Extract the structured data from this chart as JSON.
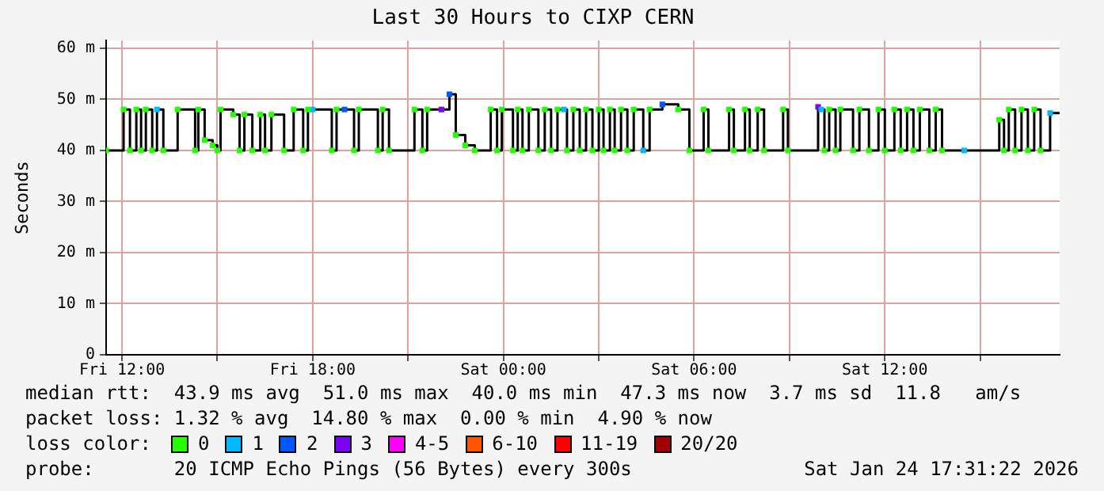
{
  "chart_data": {
    "type": "step",
    "title": "Last 30 Hours to CIXP CERN",
    "ylabel": "Seconds",
    "xlim": [
      "2026-01-23T11:30",
      "2026-01-24T17:30"
    ],
    "xticks": [
      {
        "value": "2026-01-23T12:00",
        "label": "Fri 12:00"
      },
      {
        "value": "2026-01-23T15:00",
        "label": null
      },
      {
        "value": "2026-01-23T18:00",
        "label": "Fri 18:00"
      },
      {
        "value": "2026-01-23T21:00",
        "label": null
      },
      {
        "value": "2026-01-24T00:00",
        "label": "Sat 00:00"
      },
      {
        "value": "2026-01-24T03:00",
        "label": null
      },
      {
        "value": "2026-01-24T06:00",
        "label": "Sat 06:00"
      },
      {
        "value": "2026-01-24T09:00",
        "label": null
      },
      {
        "value": "2026-01-24T12:00",
        "label": "Sat 12:00"
      },
      {
        "value": "2026-01-24T15:00",
        "label": null
      }
    ],
    "ylim": [
      0,
      61.5
    ],
    "yticks": [
      0,
      {
        "value": 10,
        "label": "10 m"
      },
      {
        "value": 20,
        "label": "20 m"
      },
      {
        "value": 30,
        "label": "30 m"
      },
      {
        "value": 40,
        "label": "40 m"
      },
      {
        "value": 50,
        "label": "50 m"
      },
      {
        "value": 60,
        "label": "60 m"
      }
    ],
    "grid": true,
    "legend": "bottom",
    "legend_title": "loss color:",
    "marker": "square",
    "line_style": "solid",
    "series": [
      {
        "color": "#000000",
        "marker": "none",
        "x": [
          "2026-01-23T11:30",
          "2026-01-23T12:03",
          "2026-01-23T12:15",
          "2026-01-23T12:27",
          "2026-01-23T12:36",
          "2026-01-23T12:45",
          "2026-01-23T12:57",
          "2026-01-23T13:06",
          "2026-01-23T13:18",
          "2026-01-23T13:45",
          "2026-01-23T14:18",
          "2026-01-23T14:24",
          "2026-01-23T14:36",
          "2026-01-23T14:51",
          "2026-01-23T15:00",
          "2026-01-23T15:06",
          "2026-01-23T15:30",
          "2026-01-23T15:42",
          "2026-01-23T15:51",
          "2026-01-23T16:06",
          "2026-01-23T16:21",
          "2026-01-23T16:30",
          "2026-01-23T16:42",
          "2026-01-23T17:06",
          "2026-01-23T17:24",
          "2026-01-23T17:42",
          "2026-01-23T17:51",
          "2026-01-23T18:36",
          "2026-01-23T18:45",
          "2026-01-23T19:18",
          "2026-01-23T19:27",
          "2026-01-23T20:03",
          "2026-01-23T20:12",
          "2026-01-23T20:24",
          "2026-01-23T21:12",
          "2026-01-23T21:27",
          "2026-01-23T21:36",
          "2026-01-23T22:18",
          "2026-01-23T22:30",
          "2026-01-23T22:48",
          "2026-01-23T23:06",
          "2026-01-23T23:36",
          "2026-01-23T23:48",
          "2026-01-23T23:57",
          "2026-01-24T00:18",
          "2026-01-24T00:27",
          "2026-01-24T00:36",
          "2026-01-24T00:48",
          "2026-01-24T01:06",
          "2026-01-24T01:18",
          "2026-01-24T01:30",
          "2026-01-24T01:42",
          "2026-01-24T02:00",
          "2026-01-24T02:12",
          "2026-01-24T02:24",
          "2026-01-24T02:36",
          "2026-01-24T02:48",
          "2026-01-24T03:00",
          "2026-01-24T03:09",
          "2026-01-24T03:21",
          "2026-01-24T03:30",
          "2026-01-24T03:42",
          "2026-01-24T03:54",
          "2026-01-24T04:06",
          "2026-01-24T04:24",
          "2026-01-24T04:36",
          "2026-01-24T05:00",
          "2026-01-24T05:30",
          "2026-01-24T05:51",
          "2026-01-24T06:18",
          "2026-01-24T06:27",
          "2026-01-24T07:06",
          "2026-01-24T07:15",
          "2026-01-24T07:36",
          "2026-01-24T07:45",
          "2026-01-24T08:00",
          "2026-01-24T08:12",
          "2026-01-24T08:48",
          "2026-01-24T08:57",
          "2026-01-24T09:54",
          "2026-01-24T10:06",
          "2026-01-24T10:15",
          "2026-01-24T10:27",
          "2026-01-24T10:36",
          "2026-01-24T11:00",
          "2026-01-24T11:12",
          "2026-01-24T11:30",
          "2026-01-24T11:48",
          "2026-01-24T12:00",
          "2026-01-24T12:18",
          "2026-01-24T12:30",
          "2026-01-24T12:42",
          "2026-01-24T12:54",
          "2026-01-24T13:06",
          "2026-01-24T13:24",
          "2026-01-24T13:36",
          "2026-01-24T13:48",
          "2026-01-24T15:36",
          "2026-01-24T15:45",
          "2026-01-24T15:54",
          "2026-01-24T16:06",
          "2026-01-24T16:18",
          "2026-01-24T16:30",
          "2026-01-24T16:42",
          "2026-01-24T16:54",
          "2026-01-24T17:12",
          "2026-01-24T17:30"
        ],
        "values": [
          40,
          48,
          40,
          48,
          40,
          48,
          40,
          48,
          40,
          48,
          40,
          48,
          42,
          41,
          40,
          48,
          47,
          40,
          47,
          40,
          47,
          40,
          47,
          40,
          48,
          40,
          48,
          40,
          48,
          40,
          48,
          40,
          48,
          40,
          48,
          40,
          48,
          51,
          43,
          41,
          40,
          48,
          40,
          48,
          40,
          48,
          40,
          48,
          40,
          48,
          40,
          48,
          40,
          48,
          40,
          48,
          40,
          48,
          40,
          48,
          40,
          48,
          40,
          48,
          40,
          48,
          49,
          48,
          40,
          48,
          40,
          48,
          40,
          48,
          40,
          48,
          40,
          48,
          40,
          48,
          40,
          48,
          40,
          48,
          40,
          48,
          40,
          48,
          40,
          48,
          40,
          48,
          40,
          48,
          40,
          48,
          40,
          46,
          40,
          48,
          40,
          48,
          40,
          48,
          40,
          47.3,
          47.3
        ]
      },
      {
        "type": "scatter",
        "name": "0",
        "color": "#26ff00",
        "x": [
          "2026-01-23T11:30",
          "2026-01-23T12:03",
          "2026-01-23T12:15",
          "2026-01-23T12:27",
          "2026-01-23T12:36",
          "2026-01-23T12:45",
          "2026-01-23T12:57",
          "2026-01-23T13:18",
          "2026-01-23T13:45",
          "2026-01-23T14:18",
          "2026-01-23T14:24",
          "2026-01-23T14:36",
          "2026-01-23T14:51",
          "2026-01-23T15:00",
          "2026-01-23T15:06",
          "2026-01-23T15:30",
          "2026-01-23T15:42",
          "2026-01-23T15:51",
          "2026-01-23T16:06",
          "2026-01-23T16:21",
          "2026-01-23T16:30",
          "2026-01-23T16:42",
          "2026-01-23T17:06",
          "2026-01-23T17:24",
          "2026-01-23T17:42",
          "2026-01-23T17:51",
          "2026-01-23T18:36",
          "2026-01-23T18:45",
          "2026-01-23T19:18",
          "2026-01-23T19:27",
          "2026-01-23T20:03",
          "2026-01-23T20:12",
          "2026-01-23T20:24",
          "2026-01-23T21:12",
          "2026-01-23T21:27",
          "2026-01-23T21:36",
          "2026-01-23T22:30",
          "2026-01-23T22:48",
          "2026-01-23T23:06",
          "2026-01-23T23:36",
          "2026-01-23T23:48",
          "2026-01-23T23:57",
          "2026-01-24T00:18",
          "2026-01-24T00:27",
          "2026-01-24T00:36",
          "2026-01-24T00:48",
          "2026-01-24T01:06",
          "2026-01-24T01:18",
          "2026-01-24T01:30",
          "2026-01-24T01:42",
          "2026-01-24T02:00",
          "2026-01-24T02:12",
          "2026-01-24T02:24",
          "2026-01-24T02:36",
          "2026-01-24T02:48",
          "2026-01-24T03:00",
          "2026-01-24T03:09",
          "2026-01-24T03:21",
          "2026-01-24T03:30",
          "2026-01-24T03:42",
          "2026-01-24T03:54",
          "2026-01-24T04:06",
          "2026-01-24T04:36",
          "2026-01-24T05:30",
          "2026-01-24T05:51",
          "2026-01-24T06:18",
          "2026-01-24T06:27",
          "2026-01-24T07:06",
          "2026-01-24T07:15",
          "2026-01-24T07:36",
          "2026-01-24T07:45",
          "2026-01-24T08:00",
          "2026-01-24T08:12",
          "2026-01-24T08:48",
          "2026-01-24T08:57",
          "2026-01-24T10:06",
          "2026-01-24T10:15",
          "2026-01-24T10:27",
          "2026-01-24T10:36",
          "2026-01-24T11:00",
          "2026-01-24T11:12",
          "2026-01-24T11:30",
          "2026-01-24T11:48",
          "2026-01-24T12:00",
          "2026-01-24T12:18",
          "2026-01-24T12:30",
          "2026-01-24T12:42",
          "2026-01-24T12:54",
          "2026-01-24T13:06",
          "2026-01-24T13:24",
          "2026-01-24T13:36",
          "2026-01-24T13:48",
          "2026-01-24T15:36",
          "2026-01-24T15:45",
          "2026-01-24T15:54",
          "2026-01-24T16:06",
          "2026-01-24T16:18",
          "2026-01-24T16:30",
          "2026-01-24T16:42",
          "2026-01-24T16:54"
        ],
        "values": [
          40,
          48,
          40,
          48,
          40,
          48,
          40,
          40,
          48,
          40,
          48,
          42,
          41,
          40,
          48,
          47,
          40,
          47,
          40,
          47,
          40,
          47,
          40,
          48,
          40,
          48,
          40,
          48,
          40,
          48,
          40,
          48,
          40,
          48,
          40,
          48,
          43,
          41,
          40,
          48,
          40,
          48,
          40,
          48,
          40,
          48,
          40,
          48,
          40,
          48,
          40,
          48,
          40,
          48,
          40,
          48,
          40,
          48,
          40,
          48,
          40,
          48,
          48,
          48,
          40,
          48,
          40,
          48,
          40,
          48,
          40,
          48,
          40,
          48,
          40,
          40,
          48,
          40,
          48,
          40,
          48,
          40,
          48,
          40,
          48,
          40,
          48,
          40,
          48,
          40,
          48,
          40,
          46,
          40,
          48,
          40,
          48,
          40,
          48,
          40
        ]
      },
      {
        "type": "scatter",
        "name": "1",
        "color": "#00b8ff",
        "x": [
          "2026-01-23T13:06",
          "2026-01-23T18:00",
          "2026-01-24T01:54",
          "2026-01-24T04:24",
          "2026-01-24T10:00",
          "2026-01-24T14:30",
          "2026-01-24T17:12"
        ],
        "values": [
          48,
          48,
          48,
          40,
          48,
          40,
          47.3
        ]
      },
      {
        "type": "scatter",
        "name": "2",
        "color": "#0059ff",
        "x": [
          "2026-01-23T19:00",
          "2026-01-23T22:18",
          "2026-01-24T05:00"
        ],
        "values": [
          48,
          51,
          49
        ]
      },
      {
        "type": "scatter",
        "name": "3",
        "color": "#7e00ff",
        "x": [
          "2026-01-23T22:03",
          "2026-01-24T09:54"
        ],
        "values": [
          48,
          48.5
        ]
      },
      {
        "type": "scatter",
        "name": "4-5",
        "color": "#ff00ff"
      },
      {
        "type": "scatter",
        "name": "6-10",
        "color": "#ff5500"
      },
      {
        "type": "scatter",
        "name": "11-19",
        "color": "#ff0000"
      },
      {
        "type": "scatter",
        "name": "20/20",
        "color": "#a10000"
      }
    ],
    "annotations": [
      "median rtt:  43.9 ms avg  51.0 ms max  40.0 ms min  47.3 ms now  3.7 ms sd  11.8   am/s",
      "packet loss: 1.32 % avg  14.80 % max  0.00 % min  4.90 % now",
      "probe:       20 ICMP Echo Pings (56 Bytes) every 300s",
      "Sat Jan 24 17:31:22 2026"
    ]
  }
}
